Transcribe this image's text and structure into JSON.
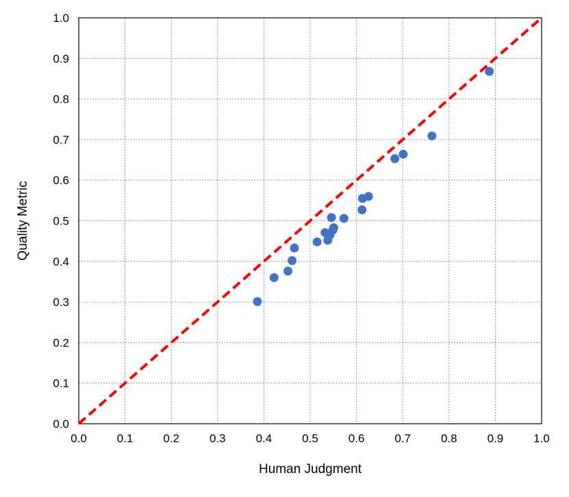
{
  "chart_data": {
    "type": "scatter",
    "title": "",
    "xlabel": "Human Judgment",
    "ylabel": "Quality Metric",
    "xlim": [
      0.0,
      1.0
    ],
    "ylim": [
      0.0,
      1.0
    ],
    "grid": true,
    "legend": "none",
    "x_ticks": [
      "0.0",
      "0.1",
      "0.2",
      "0.3",
      "0.4",
      "0.5",
      "0.6",
      "0.7",
      "0.8",
      "0.9",
      "1.0"
    ],
    "y_ticks": [
      "0.0",
      "0.1",
      "0.2",
      "0.3",
      "0.4",
      "0.5",
      "0.6",
      "0.7",
      "0.8",
      "0.9",
      "1.0"
    ],
    "series": [
      {
        "marker_color": "#4472C4",
        "points": [
          {
            "x": 0.386,
            "y": 0.301
          },
          {
            "x": 0.422,
            "y": 0.36
          },
          {
            "x": 0.452,
            "y": 0.376
          },
          {
            "x": 0.461,
            "y": 0.402
          },
          {
            "x": 0.466,
            "y": 0.433
          },
          {
            "x": 0.515,
            "y": 0.448
          },
          {
            "x": 0.532,
            "y": 0.471
          },
          {
            "x": 0.538,
            "y": 0.452
          },
          {
            "x": 0.543,
            "y": 0.465
          },
          {
            "x": 0.546,
            "y": 0.508
          },
          {
            "x": 0.549,
            "y": 0.477
          },
          {
            "x": 0.551,
            "y": 0.483
          },
          {
            "x": 0.573,
            "y": 0.506
          },
          {
            "x": 0.612,
            "y": 0.527
          },
          {
            "x": 0.613,
            "y": 0.555
          },
          {
            "x": 0.626,
            "y": 0.56
          },
          {
            "x": 0.683,
            "y": 0.653
          },
          {
            "x": 0.701,
            "y": 0.664
          },
          {
            "x": 0.763,
            "y": 0.709
          },
          {
            "x": 0.887,
            "y": 0.868
          }
        ]
      }
    ],
    "reference_line": {
      "x": [
        0.0,
        1.0
      ],
      "y": [
        0.0,
        1.0
      ],
      "color": "#FF0000",
      "style": "dashed"
    }
  }
}
